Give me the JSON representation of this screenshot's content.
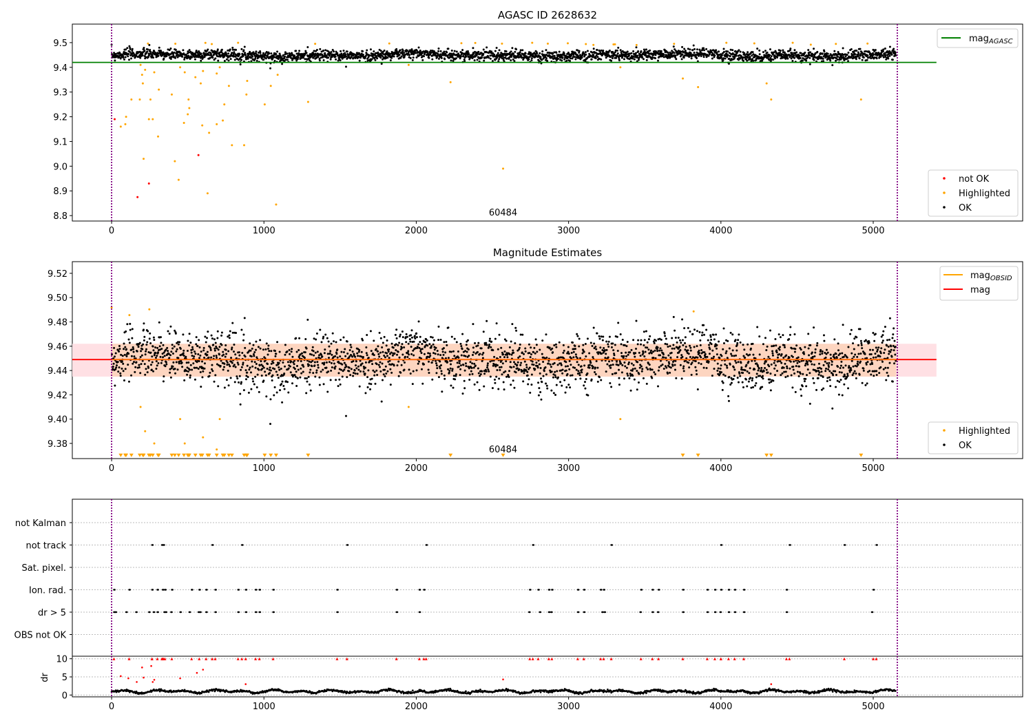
{
  "chart_data": [
    {
      "type": "scatter",
      "title": "AGASC ID 2628632",
      "xlim": [
        -258,
        5981
      ],
      "ylim": [
        8.778,
        9.575
      ],
      "xticks": [
        0,
        1000,
        2000,
        3000,
        4000,
        5000
      ],
      "yticks": [
        8.8,
        8.9,
        9.0,
        9.1,
        9.2,
        9.3,
        9.4,
        9.5
      ],
      "ref_line": {
        "label": "mag",
        "sub": "AGASC",
        "value": 9.42,
        "color": "#008000"
      },
      "vlines": [
        0,
        5158
      ],
      "annotation": "60484",
      "annotation_x": 2570,
      "legend": [
        {
          "label": "not OK",
          "color": "#ff0000"
        },
        {
          "label": "Highlighted",
          "color": "#ffa500"
        },
        {
          "label": "OK",
          "color": "#000000"
        }
      ],
      "ok_series": {
        "n": 2600,
        "x_range": [
          0,
          5150
        ],
        "mean": 9.452,
        "sd": 0.011
      },
      "not_ok": [
        [
          20,
          9.19
        ],
        [
          170,
          8.875
        ],
        [
          245,
          8.93
        ],
        [
          570,
          9.045
        ]
      ],
      "highlighted": [
        [
          60,
          9.16
        ],
        [
          95,
          9.2
        ],
        [
          90,
          9.17
        ],
        [
          130,
          9.27
        ],
        [
          185,
          9.27
        ],
        [
          190,
          9.41
        ],
        [
          200,
          9.37
        ],
        [
          205,
          9.335
        ],
        [
          210,
          9.03
        ],
        [
          220,
          9.39
        ],
        [
          245,
          9.19
        ],
        [
          255,
          9.27
        ],
        [
          270,
          9.19
        ],
        [
          280,
          9.38
        ],
        [
          305,
          9.12
        ],
        [
          310,
          9.31
        ],
        [
          395,
          9.29
        ],
        [
          415,
          9.02
        ],
        [
          440,
          8.945
        ],
        [
          450,
          9.4
        ],
        [
          475,
          9.175
        ],
        [
          480,
          9.38
        ],
        [
          500,
          9.21
        ],
        [
          505,
          9.27
        ],
        [
          510,
          9.235
        ],
        [
          550,
          9.36
        ],
        [
          585,
          9.335
        ],
        [
          595,
          9.165
        ],
        [
          600,
          9.385
        ],
        [
          630,
          8.89
        ],
        [
          640,
          9.135
        ],
        [
          690,
          9.17
        ],
        [
          690,
          9.375
        ],
        [
          710,
          9.4
        ],
        [
          730,
          9.185
        ],
        [
          740,
          9.25
        ],
        [
          770,
          9.325
        ],
        [
          790,
          9.085
        ],
        [
          870,
          9.085
        ],
        [
          885,
          9.29
        ],
        [
          890,
          9.345
        ],
        [
          1005,
          9.25
        ],
        [
          1045,
          9.325
        ],
        [
          1080,
          8.845
        ],
        [
          1090,
          9.37
        ],
        [
          1290,
          9.26
        ],
        [
          1950,
          9.41
        ],
        [
          2225,
          9.34
        ],
        [
          2570,
          8.99
        ],
        [
          3340,
          9.4
        ],
        [
          3750,
          9.355
        ],
        [
          3850,
          9.32
        ],
        [
          4300,
          9.335
        ],
        [
          4330,
          9.27
        ],
        [
          4920,
          9.27
        ]
      ]
    },
    {
      "type": "scatter",
      "title": "Magnitude Estimates",
      "xlim": [
        -258,
        5981
      ],
      "ylim": [
        9.3675,
        9.5296
      ],
      "xticks": [
        0,
        1000,
        2000,
        3000,
        4000,
        5000
      ],
      "yticks": [
        9.38,
        9.4,
        9.42,
        9.44,
        9.46,
        9.48,
        9.5,
        9.52
      ],
      "mag": 9.449,
      "mag_band": [
        9.435,
        9.462
      ],
      "annotation": "60484",
      "legend_lines": [
        {
          "label": "mag",
          "sub": "OBSID",
          "color": "#ffa500"
        },
        {
          "label": "mag",
          "sub": "",
          "color": "#ff0000"
        }
      ],
      "legend": [
        {
          "label": "Highlighted",
          "color": "#ffa500"
        },
        {
          "label": "OK",
          "color": "#000000"
        }
      ]
    },
    {
      "type": "scatter",
      "title": "",
      "categories": [
        "not Kalman",
        "not track",
        "Sat. pixel.",
        "Ion. rad.",
        "dr > 5",
        "OBS not OK"
      ],
      "flags": {
        "not track": [
          265,
          330,
          340,
          660,
          855,
          1545,
          2065,
          2765,
          3280,
          4000,
          4450,
          4810,
          5020
        ],
        "Ion. rad.": [
          15,
          115,
          265,
          300,
          335,
          350,
          395,
          525,
          575,
          620,
          680,
          830,
          880,
          945,
          970,
          1060,
          1480,
          1870,
          2020,
          2050,
          2745,
          2800,
          2870,
          2890,
          3060,
          3100,
          3210,
          3230,
          3475,
          3550,
          3590,
          3750,
          3910,
          3960,
          4000,
          4050,
          4090,
          4150,
          4430,
          5000
        ],
        "dr > 5": [
          15,
          25,
          95,
          160,
          245,
          275,
          300,
          345,
          355,
          390,
          450,
          510,
          570,
          580,
          620,
          680,
          830,
          880,
          945,
          970,
          1060,
          1480,
          1870,
          2020,
          2740,
          2810,
          2870,
          2885,
          3060,
          3100,
          3220,
          3235,
          3470,
          3550,
          3585,
          3750,
          3910,
          3960,
          3995,
          4050,
          4090,
          4150,
          4430,
          4990
        ]
      }
    },
    {
      "type": "scatter",
      "ylabel": "dr",
      "ylim": [
        -0.5,
        10.7
      ],
      "yticks": [
        0,
        5,
        10
      ],
      "xticks": [
        0,
        1000,
        2000,
        3000,
        4000,
        5000
      ],
      "red_points": [
        [
          60,
          5.2
        ],
        [
          110,
          4.6
        ],
        [
          165,
          3.6
        ],
        [
          200,
          7.6
        ],
        [
          210,
          4.8
        ],
        [
          260,
          8.0
        ],
        [
          270,
          3.6
        ],
        [
          280,
          4.2
        ],
        [
          450,
          4.6
        ],
        [
          560,
          6.1
        ],
        [
          600,
          7.0
        ],
        [
          880,
          3.0
        ],
        [
          2570,
          4.3
        ],
        [
          4330,
          3.0
        ]
      ]
    }
  ]
}
